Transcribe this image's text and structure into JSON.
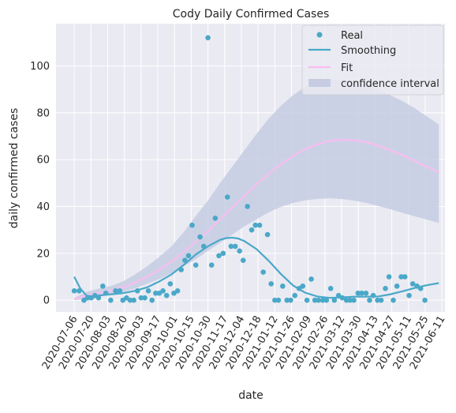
{
  "chart_data": {
    "type": "line",
    "title": "Cody Daily Confirmed Cases",
    "xlabel": "date",
    "ylabel": "daily confirmed cases",
    "x_ticks": [
      "2020-07-06",
      "2020-07-20",
      "2020-08-03",
      "2020-08-20",
      "2020-09-03",
      "2020-09-17",
      "2020-10-01",
      "2020-10-15",
      "2020-10-30",
      "2020-11-17",
      "2020-12-04",
      "2020-12-18",
      "2021-01-12",
      "2021-01-26",
      "2021-02-09",
      "2021-02-26",
      "2021-03-12",
      "2021-03-30",
      "2021-04-13",
      "2021-04-27",
      "2021-05-11",
      "2021-05-25",
      "2021-06-11"
    ],
    "y_ticks": [
      0,
      20,
      40,
      60,
      80,
      100
    ],
    "ylim": [
      -5,
      118
    ],
    "xlim": [
      -3,
      61
    ],
    "grid": true,
    "legend_position": "top-right",
    "legend": [
      "Real",
      "Smoothing",
      "Fit",
      "confidence interval"
    ],
    "colors": {
      "real": "#4aa8c8",
      "smoothing": "#4aa8c8",
      "fit": "#f8bdf0",
      "confidence": "#c6cde3",
      "background": "#eaeaf2",
      "grid": "#ffffff"
    },
    "series": [
      {
        "name": "Real",
        "style": "scatter",
        "x": [
          0,
          0.8,
          1.6,
          2.2,
          2.8,
          3.4,
          4,
          4.7,
          5.2,
          6,
          6.8,
          7.5,
          8,
          8.6,
          9.2,
          9.8,
          10.4,
          11,
          11.6,
          12.2,
          12.8,
          13.4,
          14,
          14.6,
          15.2,
          15.8,
          16.4,
          17,
          17.6,
          18.2,
          18.8,
          19.4,
          20,
          20.7,
          21.3,
          22,
          22.6,
          23.2,
          23.8,
          24.5,
          25.2,
          25.8,
          26.5,
          27.2,
          27.8,
          28.5,
          29.2,
          29.8,
          30.5,
          31.1,
          31.8,
          32.4,
          33,
          33.6,
          34.3,
          35,
          35.6,
          36.3,
          37,
          37.6,
          38.3,
          39,
          39.6,
          40.2,
          40.9,
          41.5,
          42.2,
          42.8,
          43.5,
          44.1,
          44.8,
          45.4,
          46,
          46.7,
          47.3,
          48,
          48.6,
          49.2,
          49.9,
          50.5,
          51.2,
          51.8,
          52.5,
          53.1,
          53.8,
          54.4,
          55.1,
          55.7,
          56.4,
          57,
          57.7
        ],
        "values": [
          4,
          4,
          0,
          1,
          1,
          2,
          1,
          6,
          3,
          0,
          4,
          4,
          0,
          1,
          0,
          0,
          4,
          1,
          1,
          4,
          0,
          3,
          3,
          4,
          2,
          7,
          3,
          4,
          13,
          17,
          19,
          32,
          15,
          27,
          23,
          112,
          15,
          35,
          19,
          20,
          44,
          23,
          23,
          21,
          17,
          40,
          30,
          32,
          32,
          12,
          28,
          7,
          0,
          0,
          6,
          0,
          0,
          2,
          5,
          6,
          0,
          9,
          0,
          0,
          0,
          0,
          5,
          0,
          2,
          1,
          0,
          0,
          0,
          3,
          3,
          3,
          0,
          2,
          0,
          0,
          5,
          10,
          0,
          6,
          10,
          10,
          2,
          7,
          6,
          5,
          0
        ]
      },
      {
        "name": "Smoothing",
        "style": "line",
        "x": [
          0,
          1,
          2,
          3,
          4,
          6,
          8,
          10,
          12,
          14,
          16,
          18,
          20,
          22,
          24,
          25,
          26,
          27,
          28,
          30,
          32,
          34,
          36,
          38,
          40,
          42,
          44,
          46,
          48,
          50,
          52,
          54,
          56,
          58,
          60
        ],
        "values": [
          10,
          5,
          2,
          1.5,
          2,
          2.5,
          3,
          4,
          5.5,
          8,
          11,
          15,
          19.5,
          23,
          25.8,
          26.5,
          26.7,
          26.3,
          25.2,
          21.8,
          16.8,
          11.2,
          6.3,
          3.2,
          1.6,
          1,
          1.2,
          1.5,
          1.5,
          1.6,
          2.5,
          3.8,
          5.2,
          6.4,
          7.3
        ]
      },
      {
        "name": "Fit",
        "style": "line",
        "x": [
          0,
          2,
          4,
          6,
          8,
          10,
          12,
          14,
          16,
          18,
          20,
          22,
          24,
          26,
          28,
          30,
          32,
          34,
          36,
          38,
          40,
          42,
          44,
          46,
          48,
          50,
          52,
          54,
          56,
          58,
          60
        ],
        "values": [
          0.5,
          2,
          3,
          4,
          5.5,
          7.5,
          10,
          13,
          16.5,
          20.5,
          25,
          29.5,
          34.5,
          39.5,
          44.5,
          49.5,
          54,
          58,
          61.5,
          64.5,
          66.5,
          68,
          68.5,
          68.3,
          67.5,
          66,
          64,
          62,
          59.5,
          57,
          54.5
        ]
      },
      {
        "name": "confidence interval",
        "style": "band",
        "x": [
          0,
          2,
          4,
          6,
          8,
          10,
          12,
          14,
          16,
          18,
          20,
          22,
          24,
          26,
          28,
          30,
          32,
          34,
          36,
          38,
          40,
          42,
          44,
          46,
          48,
          50,
          52,
          54,
          56,
          58,
          60
        ],
        "lower": [
          0,
          0.5,
          1.5,
          2.5,
          3.5,
          5,
          7,
          9,
          11.5,
          14.5,
          17.5,
          21,
          24.5,
          28,
          31.5,
          34.5,
          37.5,
          39.8,
          41.5,
          42.6,
          43.2,
          43.5,
          43.2,
          42.5,
          41.5,
          40.2,
          38.8,
          37.3,
          35.8,
          34.4,
          33
        ],
        "upper": [
          1,
          3.5,
          5,
          6,
          8,
          11,
          14.5,
          18.5,
          23,
          29,
          36,
          42.5,
          50,
          57,
          64,
          71,
          77.5,
          83,
          87.5,
          91,
          93,
          94,
          94,
          93.5,
          92,
          90,
          87.5,
          85,
          82,
          78.5,
          75
        ]
      }
    ]
  }
}
